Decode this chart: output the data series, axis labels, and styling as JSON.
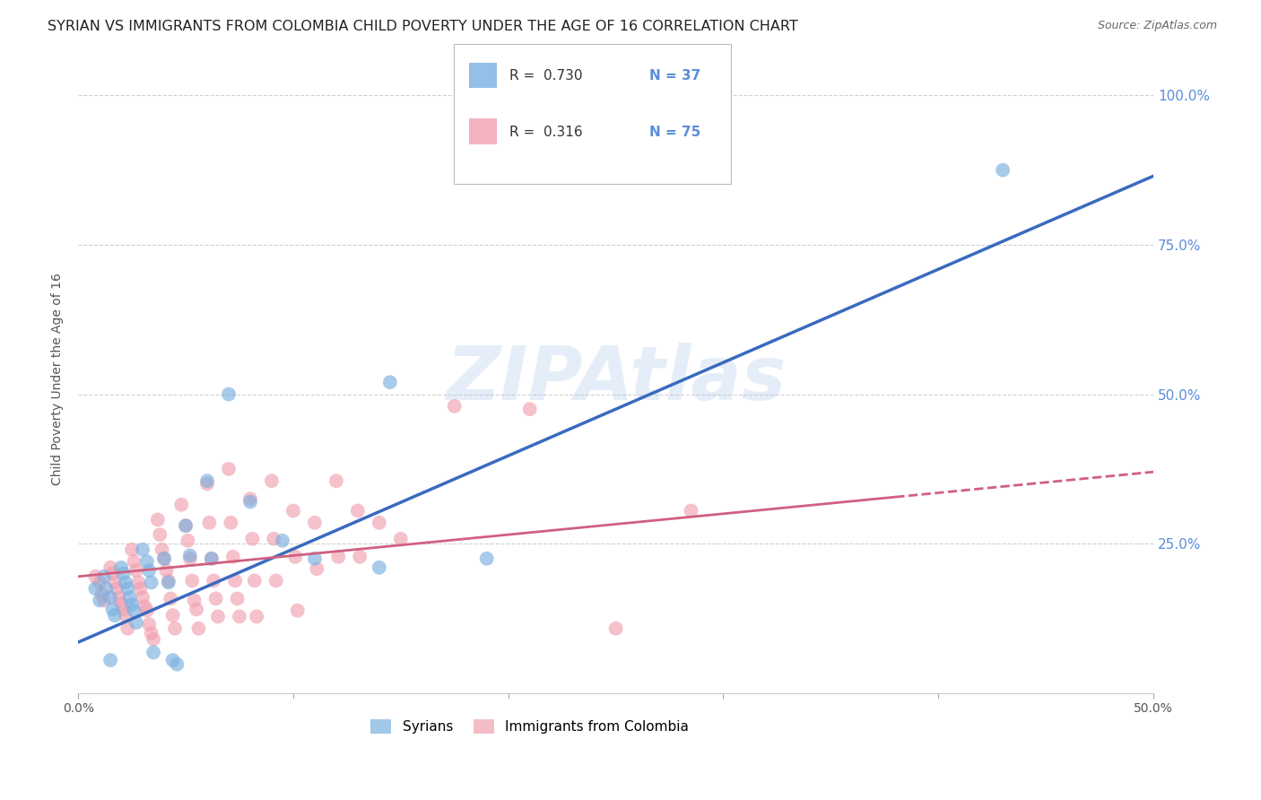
{
  "title": "SYRIAN VS IMMIGRANTS FROM COLOMBIA CHILD POVERTY UNDER THE AGE OF 16 CORRELATION CHART",
  "source": "Source: ZipAtlas.com",
  "ylabel": "Child Poverty Under the Age of 16",
  "xlim": [
    0.0,
    0.5
  ],
  "ylim": [
    0.0,
    1.05
  ],
  "xticks": [
    0.0,
    0.1,
    0.2,
    0.3,
    0.4,
    0.5
  ],
  "xtick_labels": [
    "0.0%",
    "",
    "",
    "",
    "",
    "50.0%"
  ],
  "ytick_labels_right": [
    "25.0%",
    "50.0%",
    "75.0%",
    "100.0%"
  ],
  "ytick_vals_right": [
    0.25,
    0.5,
    0.75,
    1.0
  ],
  "ytick_vals": [
    0.0,
    0.25,
    0.5,
    0.75,
    1.0
  ],
  "syrian_color": "#7ab0e0",
  "colombia_color": "#f0a0b0",
  "regression_blue": "#3a6abf",
  "regression_pink": "#d06080",
  "legend_R_blue": "0.730",
  "legend_N_blue": "37",
  "legend_R_pink": "0.316",
  "legend_N_pink": "75",
  "watermark": "ZIPAtlas",
  "title_fontsize": 11.5,
  "axis_label_fontsize": 10,
  "tick_fontsize": 10,
  "right_tick_color": "#5b8dd9",
  "background_color": "#ffffff",
  "blue_line": [
    0.0,
    0.085,
    0.5,
    0.865
  ],
  "pink_line": [
    0.0,
    0.195,
    0.5,
    0.37
  ],
  "syrian_points": [
    [
      0.008,
      0.175
    ],
    [
      0.01,
      0.155
    ],
    [
      0.012,
      0.195
    ],
    [
      0.013,
      0.175
    ],
    [
      0.015,
      0.16
    ],
    [
      0.016,
      0.14
    ],
    [
      0.017,
      0.13
    ],
    [
      0.02,
      0.21
    ],
    [
      0.021,
      0.2
    ],
    [
      0.022,
      0.185
    ],
    [
      0.023,
      0.175
    ],
    [
      0.024,
      0.16
    ],
    [
      0.025,
      0.148
    ],
    [
      0.026,
      0.138
    ],
    [
      0.027,
      0.118
    ],
    [
      0.03,
      0.24
    ],
    [
      0.032,
      0.22
    ],
    [
      0.033,
      0.205
    ],
    [
      0.034,
      0.185
    ],
    [
      0.035,
      0.068
    ],
    [
      0.04,
      0.225
    ],
    [
      0.042,
      0.185
    ],
    [
      0.044,
      0.055
    ],
    [
      0.046,
      0.048
    ],
    [
      0.05,
      0.28
    ],
    [
      0.052,
      0.23
    ],
    [
      0.06,
      0.355
    ],
    [
      0.062,
      0.225
    ],
    [
      0.07,
      0.5
    ],
    [
      0.08,
      0.32
    ],
    [
      0.095,
      0.255
    ],
    [
      0.11,
      0.225
    ],
    [
      0.14,
      0.21
    ],
    [
      0.145,
      0.52
    ],
    [
      0.19,
      0.225
    ],
    [
      0.43,
      0.875
    ],
    [
      0.015,
      0.055
    ]
  ],
  "colombia_points": [
    [
      0.008,
      0.195
    ],
    [
      0.01,
      0.185
    ],
    [
      0.011,
      0.165
    ],
    [
      0.012,
      0.155
    ],
    [
      0.015,
      0.21
    ],
    [
      0.016,
      0.2
    ],
    [
      0.017,
      0.185
    ],
    [
      0.018,
      0.175
    ],
    [
      0.019,
      0.16
    ],
    [
      0.02,
      0.15
    ],
    [
      0.021,
      0.14
    ],
    [
      0.022,
      0.13
    ],
    [
      0.023,
      0.108
    ],
    [
      0.025,
      0.24
    ],
    [
      0.026,
      0.22
    ],
    [
      0.027,
      0.205
    ],
    [
      0.028,
      0.185
    ],
    [
      0.029,
      0.175
    ],
    [
      0.03,
      0.16
    ],
    [
      0.031,
      0.145
    ],
    [
      0.032,
      0.138
    ],
    [
      0.033,
      0.115
    ],
    [
      0.034,
      0.1
    ],
    [
      0.035,
      0.09
    ],
    [
      0.037,
      0.29
    ],
    [
      0.038,
      0.265
    ],
    [
      0.039,
      0.24
    ],
    [
      0.04,
      0.225
    ],
    [
      0.041,
      0.205
    ],
    [
      0.042,
      0.188
    ],
    [
      0.043,
      0.158
    ],
    [
      0.044,
      0.13
    ],
    [
      0.045,
      0.108
    ],
    [
      0.048,
      0.315
    ],
    [
      0.05,
      0.28
    ],
    [
      0.051,
      0.255
    ],
    [
      0.052,
      0.225
    ],
    [
      0.053,
      0.188
    ],
    [
      0.054,
      0.155
    ],
    [
      0.055,
      0.14
    ],
    [
      0.056,
      0.108
    ],
    [
      0.06,
      0.35
    ],
    [
      0.061,
      0.285
    ],
    [
      0.062,
      0.225
    ],
    [
      0.063,
      0.188
    ],
    [
      0.064,
      0.158
    ],
    [
      0.065,
      0.128
    ],
    [
      0.07,
      0.375
    ],
    [
      0.071,
      0.285
    ],
    [
      0.072,
      0.228
    ],
    [
      0.073,
      0.188
    ],
    [
      0.074,
      0.158
    ],
    [
      0.075,
      0.128
    ],
    [
      0.08,
      0.325
    ],
    [
      0.081,
      0.258
    ],
    [
      0.082,
      0.188
    ],
    [
      0.083,
      0.128
    ],
    [
      0.09,
      0.355
    ],
    [
      0.091,
      0.258
    ],
    [
      0.092,
      0.188
    ],
    [
      0.1,
      0.305
    ],
    [
      0.101,
      0.228
    ],
    [
      0.102,
      0.138
    ],
    [
      0.11,
      0.285
    ],
    [
      0.111,
      0.208
    ],
    [
      0.12,
      0.355
    ],
    [
      0.121,
      0.228
    ],
    [
      0.13,
      0.305
    ],
    [
      0.131,
      0.228
    ],
    [
      0.14,
      0.285
    ],
    [
      0.15,
      0.258
    ],
    [
      0.175,
      0.48
    ],
    [
      0.21,
      0.475
    ],
    [
      0.25,
      0.108
    ],
    [
      0.285,
      0.305
    ]
  ]
}
